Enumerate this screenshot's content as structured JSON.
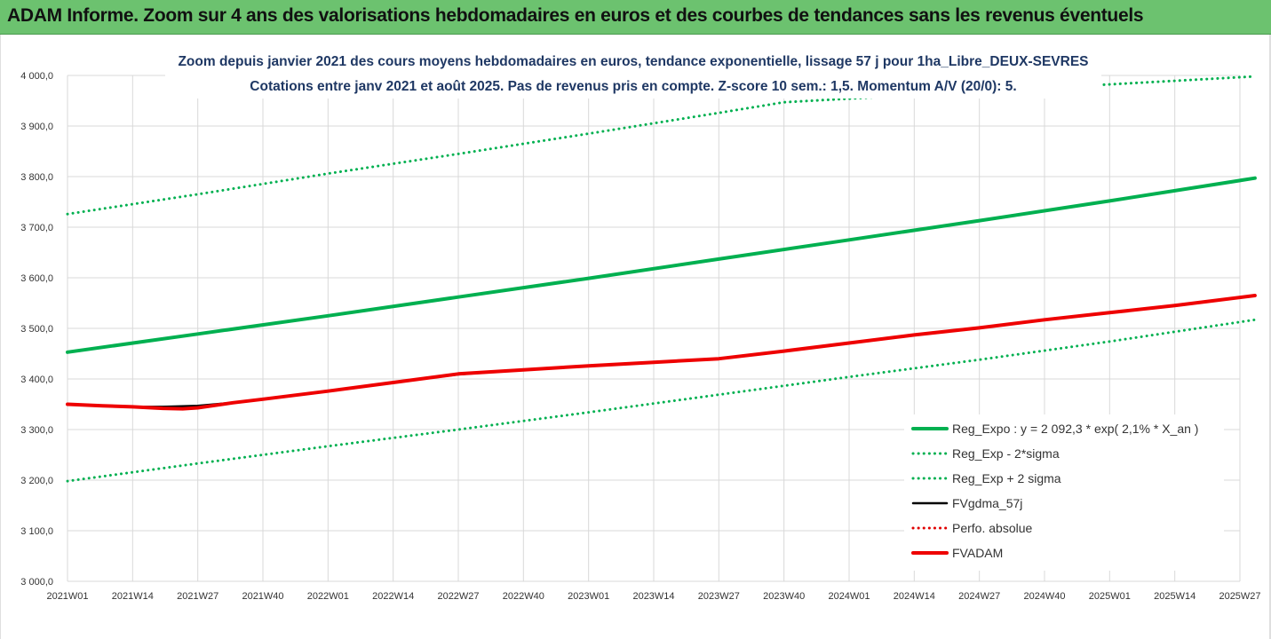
{
  "banner": {
    "title": "ADAM Informe. Zoom sur 4 ans des valorisations hebdomadaires en euros et des courbes de tendances sans les revenus éventuels"
  },
  "colors": {
    "banner_bg": "#6cc26f",
    "trend": "#00b050",
    "sigma": "#00b050",
    "fvgdma": "#000000",
    "perfo": "#e00000",
    "fvadam": "#ee0000",
    "title": "#1f3864"
  },
  "chart_data": {
    "type": "line",
    "title": "Zoom depuis janvier 2021 des cours moyens hebdomadaires en euros, tendance exponentielle, lissage 57 j pour 1ha_Libre_DEUX-SEVRES",
    "subtitle": "Cotations entre janv 2021 et août 2025.  Pas de revenus pris en compte. Z-score 10 sem.: 1,5. Momentum A/V (20/0): 5.",
    "xlabel": "",
    "ylabel": "",
    "ylim": [
      3000,
      4000
    ],
    "y_ticks": [
      "3 000,0",
      "3 100,0",
      "3 200,0",
      "3 300,0",
      "3 400,0",
      "3 500,0",
      "3 600,0",
      "3 700,0",
      "3 800,0",
      "3 900,0",
      "4 000,0"
    ],
    "x_ticks": [
      "2021W01",
      "2021W14",
      "2021W27",
      "2021W40",
      "2022W01",
      "2022W14",
      "2022W27",
      "2022W40",
      "2023W01",
      "2023W14",
      "2023W27",
      "2023W40",
      "2024W01",
      "2024W14",
      "2024W27",
      "2024W40",
      "2025W01",
      "2025W14",
      "2025W27"
    ],
    "grid": true,
    "legend_position": "bottom-right",
    "series": [
      {
        "name": "Reg_Expo : y = 2 092,3 * exp( 2,1% *  X_an )",
        "style": "solid-thick",
        "color": "#00b050",
        "x": [
          "2021W01",
          "2021W27",
          "2022W01",
          "2022W27",
          "2023W01",
          "2023W27",
          "2024W01",
          "2024W27",
          "2025W01",
          "2025W30"
        ],
        "values": [
          3453,
          3489,
          3525,
          3562,
          3599,
          3637,
          3675,
          3713,
          3752,
          3797
        ]
      },
      {
        "name": "Reg_Exp - 2*sigma",
        "style": "dotted",
        "color": "#00b050",
        "x": [
          "2021W01",
          "2021W27",
          "2022W01",
          "2022W27",
          "2023W01",
          "2023W27",
          "2024W01",
          "2024W27",
          "2025W01",
          "2025W30"
        ],
        "values": [
          3198,
          3233,
          3267,
          3300,
          3334,
          3369,
          3404,
          3438,
          3474,
          3517
        ]
      },
      {
        "name": "Reg_Exp + 2 sigma",
        "style": "dotted",
        "color": "#00b050",
        "x": [
          "2021W01",
          "2021W27",
          "2022W01",
          "2022W27",
          "2023W01",
          "2023W27",
          "2023W40",
          "2025W30"
        ],
        "values": [
          3726,
          3765,
          3806,
          3845,
          3885,
          3926,
          3947,
          3998
        ]
      },
      {
        "name": "FVgdma_57j",
        "style": "solid",
        "color": "#000000",
        "x": [
          "2021W01",
          "2021W08",
          "2021W14",
          "2021W20",
          "2021W27",
          "2021W34",
          "2021W40",
          "2022W01",
          "2022W14",
          "2022W27",
          "2022W40",
          "2023W01",
          "2023W14",
          "2023W27",
          "2023W40",
          "2024W01",
          "2024W14",
          "2024W27",
          "2024W40",
          "2025W01",
          "2025W14",
          "2025W30"
        ],
        "values": [
          3350,
          3347,
          3345,
          3345,
          3347,
          3353,
          3360,
          3376,
          3393,
          3409,
          3418,
          3426,
          3433,
          3440,
          3455,
          3471,
          3487,
          3501,
          3517,
          3531,
          3545,
          3565
        ]
      },
      {
        "name": "Perfo. absolue",
        "style": "dotted",
        "color": "#e00000",
        "x": [],
        "values": []
      },
      {
        "name": "FVADAM",
        "style": "solid-thick",
        "color": "#ee0000",
        "x": [
          "2021W01",
          "2021W08",
          "2021W14",
          "2021W20",
          "2021W24",
          "2021W27",
          "2021W34",
          "2021W40",
          "2022W01",
          "2022W14",
          "2022W27",
          "2022W40",
          "2023W01",
          "2023W14",
          "2023W27",
          "2023W40",
          "2024W01",
          "2024W14",
          "2024W27",
          "2024W40",
          "2025W01",
          "2025W14",
          "2025W30"
        ],
        "values": [
          3350,
          3347,
          3345,
          3342,
          3341,
          3343,
          3353,
          3360,
          3376,
          3393,
          3410,
          3418,
          3426,
          3433,
          3440,
          3455,
          3471,
          3487,
          3501,
          3517,
          3531,
          3545,
          3565
        ]
      }
    ]
  }
}
